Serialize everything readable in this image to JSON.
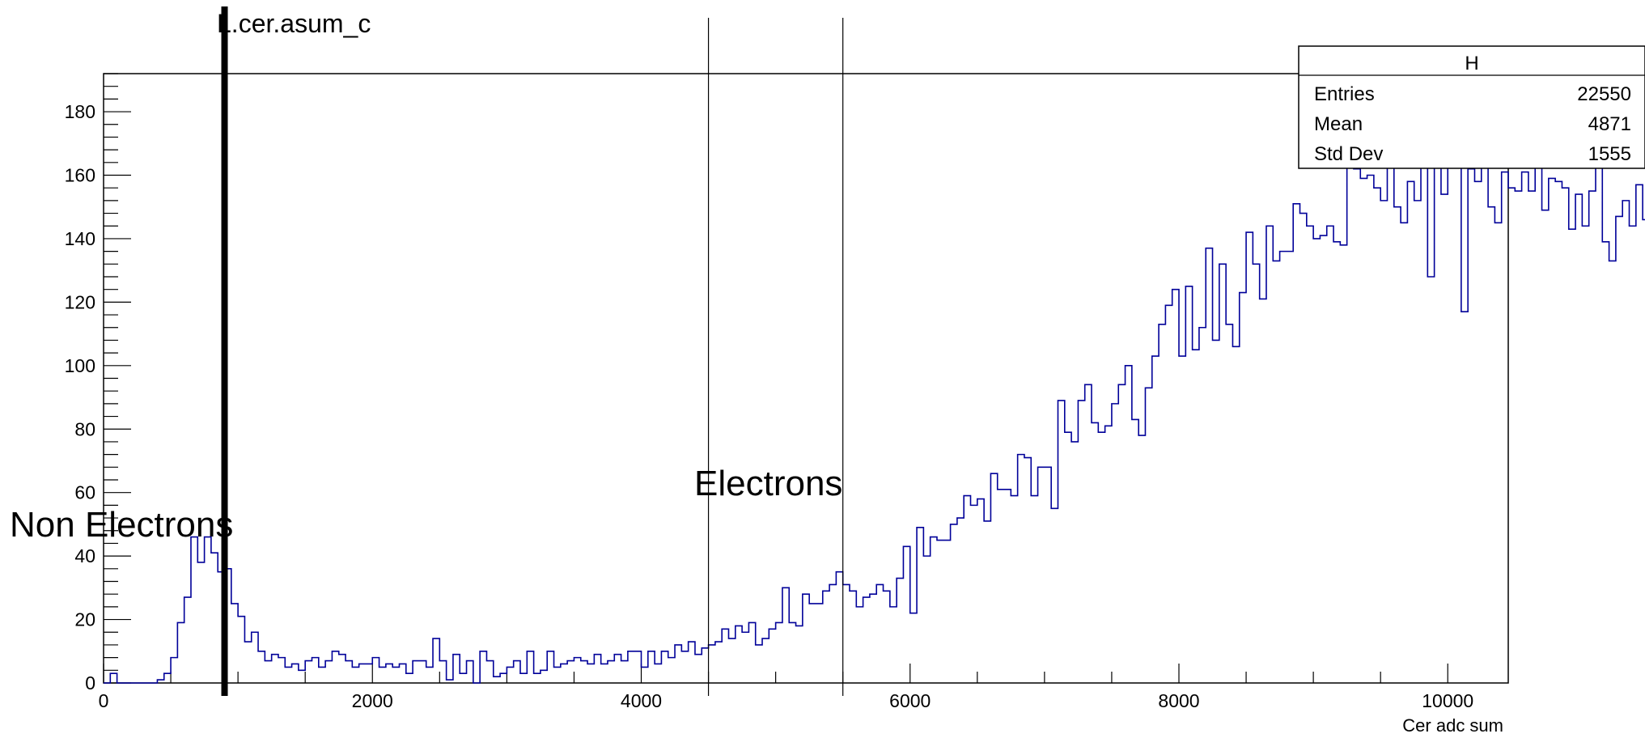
{
  "chart_data": {
    "type": "bar",
    "title": "L.cer.asum_c",
    "xlabel": "Cer adc sum",
    "ylabel": "",
    "xlim": [
      0,
      10450
    ],
    "ylim": [
      0,
      192
    ],
    "x_ticks": [
      0,
      2000,
      4000,
      6000,
      8000,
      10000
    ],
    "y_ticks": [
      0,
      20,
      40,
      60,
      80,
      100,
      120,
      140,
      160,
      180
    ],
    "line_color": "#000099",
    "bin_width": 50,
    "x_start": 0,
    "values": [
      0,
      3,
      0,
      0,
      0,
      0,
      0,
      0,
      1,
      3,
      8,
      19,
      27,
      46,
      38,
      46,
      41,
      35,
      36,
      25,
      21,
      13,
      16,
      10,
      7,
      9,
      8,
      5,
      6,
      4,
      7,
      8,
      5,
      7,
      10,
      9,
      7,
      5,
      6,
      6,
      8,
      5,
      6,
      5,
      6,
      3,
      7,
      7,
      5,
      14,
      7,
      1,
      9,
      3,
      7,
      0,
      10,
      7,
      2,
      3,
      5,
      7,
      3,
      10,
      3,
      4,
      10,
      5,
      6,
      7,
      8,
      7,
      6,
      9,
      6,
      7,
      9,
      7,
      10,
      10,
      5,
      10,
      6,
      10,
      8,
      12,
      10,
      13,
      9,
      11,
      12,
      13,
      17,
      14,
      18,
      16,
      19,
      12,
      14,
      17,
      19,
      30,
      19,
      18,
      28,
      25,
      25,
      29,
      31,
      35,
      31,
      29,
      24,
      27,
      28,
      31,
      29,
      24,
      33,
      43,
      22,
      49,
      40,
      46,
      45,
      45,
      50,
      52,
      59,
      56,
      58,
      51,
      66,
      61,
      61,
      59,
      72,
      71,
      59,
      68,
      68,
      55,
      89,
      79,
      76,
      89,
      94,
      82,
      79,
      81,
      88,
      94,
      100,
      83,
      78,
      93,
      103,
      113,
      119,
      124,
      103,
      125,
      105,
      112,
      137,
      108,
      132,
      113,
      106,
      123,
      142,
      132,
      121,
      144,
      133,
      136,
      136,
      151,
      148,
      144,
      140,
      141,
      144,
      139,
      138,
      164,
      162,
      159,
      160,
      156,
      152,
      185,
      150,
      145,
      158,
      152,
      175,
      128,
      167,
      154,
      177,
      163,
      117,
      162,
      158,
      170,
      150,
      145,
      161,
      156,
      155,
      161,
      155,
      174,
      149,
      159,
      158,
      156,
      143,
      154,
      144,
      155,
      164,
      139,
      133,
      147,
      152,
      144,
      157,
      146,
      152,
      166,
      154,
      157,
      131,
      142,
      133,
      135,
      126,
      131,
      126,
      140,
      131,
      123,
      126,
      143,
      134,
      130,
      131,
      122,
      145,
      118,
      106,
      114,
      116,
      118,
      109,
      112,
      106,
      108,
      100,
      105,
      109,
      111,
      106,
      97,
      96,
      103,
      96,
      92,
      89,
      95,
      88,
      84,
      80,
      92,
      84,
      81,
      80,
      78,
      77,
      82,
      72,
      64,
      66,
      72,
      64,
      63,
      73,
      64,
      58,
      55,
      52,
      62,
      53,
      48,
      55,
      49,
      51,
      53,
      41,
      44,
      35,
      39,
      40,
      37,
      44,
      39,
      33,
      34,
      33,
      28,
      32,
      28,
      31,
      30,
      30,
      31,
      28,
      27,
      28,
      25,
      24,
      26,
      22,
      20,
      21,
      26,
      18,
      25,
      21,
      20,
      18,
      20,
      15,
      11,
      13,
      21,
      21,
      13,
      17,
      15,
      13,
      9,
      15,
      12,
      13,
      12,
      9,
      8,
      10,
      13,
      11,
      9,
      12,
      10,
      11,
      12,
      6,
      8,
      11,
      7,
      10,
      12,
      6,
      11,
      10,
      4,
      10,
      6,
      5,
      4,
      3,
      4,
      6,
      3,
      2,
      4,
      2,
      6,
      1,
      2,
      4,
      3,
      2,
      1,
      3,
      2,
      4,
      3,
      1,
      3,
      0,
      0,
      2,
      3,
      1,
      0,
      1,
      3,
      2,
      0,
      3,
      2,
      1,
      0,
      1,
      2,
      3,
      0,
      1,
      1,
      2,
      1,
      0,
      1,
      2,
      1,
      0,
      3,
      1,
      2,
      1,
      0,
      1,
      2,
      0,
      1,
      2,
      0,
      3
    ]
  },
  "vertical_markers": [
    {
      "x": 900,
      "style": "thick"
    },
    {
      "x": 4500,
      "style": "thin"
    },
    {
      "x": 5500,
      "style": "thin"
    }
  ],
  "annotations": {
    "electrons": "Electrons",
    "non_electrons": "Non Electrons"
  },
  "stats_box": {
    "title": "H",
    "rows": [
      {
        "label": "Entries",
        "value": "22550"
      },
      {
        "label": "Mean",
        "value": "4871"
      },
      {
        "label": "Std Dev",
        "value": "1555"
      }
    ]
  }
}
